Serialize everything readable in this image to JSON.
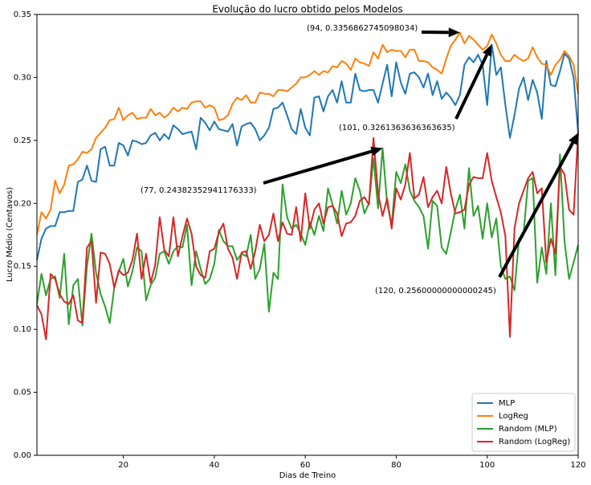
{
  "chart_data": {
    "type": "line",
    "title": "Evolução do lucro obtido pelos Modelos",
    "xlabel": "Dias de Treino",
    "ylabel": "Lucro Médio (Centavos)",
    "xlim": [
      1,
      120
    ],
    "ylim": [
      0,
      0.35
    ],
    "xticks": [
      20,
      40,
      60,
      80,
      100,
      120
    ],
    "yticks": [
      {
        "value": 0,
        "label": "0.00"
      },
      {
        "value": 0.05,
        "label": "0.05"
      },
      {
        "value": 0.1,
        "label": "0.10"
      },
      {
        "value": 0.15,
        "label": "0.15"
      },
      {
        "value": 0.2,
        "label": "0.20"
      },
      {
        "value": 0.25,
        "label": "0.25"
      },
      {
        "value": 0.3,
        "label": "0.30"
      },
      {
        "value": 0.35,
        "label": "0.35"
      }
    ],
    "legend": "lower right",
    "x": [
      1,
      2,
      3,
      4,
      5,
      6,
      7,
      8,
      9,
      10,
      11,
      12,
      13,
      14,
      15,
      16,
      17,
      18,
      19,
      20,
      21,
      22,
      23,
      24,
      25,
      26,
      27,
      28,
      29,
      30,
      31,
      32,
      33,
      34,
      35,
      36,
      37,
      38,
      39,
      40,
      41,
      42,
      43,
      44,
      45,
      46,
      47,
      48,
      49,
      50,
      51,
      52,
      53,
      54,
      55,
      56,
      57,
      58,
      59,
      60,
      61,
      62,
      63,
      64,
      65,
      66,
      67,
      68,
      69,
      70,
      71,
      72,
      73,
      74,
      75,
      76,
      77,
      78,
      79,
      80,
      81,
      82,
      83,
      84,
      85,
      86,
      87,
      88,
      89,
      90,
      91,
      92,
      93,
      94,
      95,
      96,
      97,
      98,
      99,
      100,
      101,
      102,
      103,
      104,
      105,
      106,
      107,
      108,
      109,
      110,
      111,
      112,
      113,
      114,
      115,
      116,
      117,
      118,
      119,
      120
    ],
    "series": [
      {
        "name": "MLP",
        "color": "#1f77b4",
        "values": [
          0.155,
          0.172,
          0.18,
          0.182,
          0.182,
          0.193,
          0.193,
          0.194,
          0.194,
          0.217,
          0.219,
          0.23,
          0.218,
          0.217,
          0.243,
          0.245,
          0.23,
          0.23,
          0.248,
          0.246,
          0.238,
          0.25,
          0.249,
          0.247,
          0.248,
          0.254,
          0.256,
          0.25,
          0.255,
          0.251,
          0.262,
          0.259,
          0.255,
          0.256,
          0.257,
          0.243,
          0.268,
          0.264,
          0.258,
          0.265,
          0.259,
          0.258,
          0.257,
          0.263,
          0.246,
          0.261,
          0.263,
          0.264,
          0.259,
          0.25,
          0.254,
          0.26,
          0.275,
          0.276,
          0.28,
          0.27,
          0.259,
          0.255,
          0.275,
          0.26,
          0.254,
          0.284,
          0.285,
          0.273,
          0.285,
          0.29,
          0.28,
          0.297,
          0.28,
          0.28,
          0.303,
          0.29,
          0.289,
          0.29,
          0.29,
          0.28,
          0.295,
          0.31,
          0.285,
          0.312,
          0.296,
          0.287,
          0.303,
          0.304,
          0.3,
          0.292,
          0.303,
          0.286,
          0.297,
          0.283,
          0.288,
          0.284,
          0.278,
          0.286,
          0.31,
          0.316,
          0.312,
          0.318,
          0.31,
          0.278,
          0.3261363636363635,
          0.302,
          0.308,
          0.278,
          0.252,
          0.27,
          0.291,
          0.3,
          0.282,
          0.298,
          0.288,
          0.267,
          0.313,
          0.294,
          0.293,
          0.305,
          0.319,
          0.315,
          0.3,
          0.256
        ]
      },
      {
        "name": "LogReg",
        "color": "#ff7f0e",
        "values": [
          0.175,
          0.193,
          0.188,
          0.195,
          0.218,
          0.208,
          0.215,
          0.23,
          0.231,
          0.235,
          0.241,
          0.24,
          0.243,
          0.252,
          0.256,
          0.26,
          0.266,
          0.267,
          0.276,
          0.266,
          0.27,
          0.272,
          0.267,
          0.268,
          0.268,
          0.275,
          0.27,
          0.272,
          0.268,
          0.271,
          0.276,
          0.273,
          0.276,
          0.275,
          0.28,
          0.281,
          0.281,
          0.276,
          0.278,
          0.276,
          0.266,
          0.267,
          0.27,
          0.279,
          0.284,
          0.282,
          0.286,
          0.28,
          0.28,
          0.288,
          0.287,
          0.287,
          0.285,
          0.29,
          0.29,
          0.289,
          0.292,
          0.295,
          0.3,
          0.3,
          0.302,
          0.305,
          0.302,
          0.305,
          0.304,
          0.309,
          0.308,
          0.313,
          0.311,
          0.306,
          0.315,
          0.312,
          0.311,
          0.309,
          0.32,
          0.315,
          0.326,
          0.32,
          0.322,
          0.321,
          0.321,
          0.316,
          0.322,
          0.322,
          0.313,
          0.313,
          0.312,
          0.308,
          0.306,
          0.303,
          0.315,
          0.325,
          0.33,
          0.3356862745098034,
          0.327,
          0.333,
          0.33,
          0.326,
          0.322,
          0.325,
          0.334,
          0.327,
          0.318,
          0.313,
          0.313,
          0.318,
          0.315,
          0.313,
          0.315,
          0.324,
          0.316,
          0.311,
          0.31,
          0.302,
          0.31,
          0.314,
          0.321,
          0.317,
          0.31,
          0.287
        ]
      },
      {
        "name": "Random (MLP)",
        "color": "#2ca02c",
        "values": [
          0.12,
          0.144,
          0.127,
          0.14,
          0.142,
          0.125,
          0.16,
          0.104,
          0.135,
          0.14,
          0.103,
          0.15,
          0.176,
          0.145,
          0.128,
          0.118,
          0.105,
          0.133,
          0.146,
          0.156,
          0.134,
          0.146,
          0.165,
          0.162,
          0.123,
          0.135,
          0.141,
          0.16,
          0.162,
          0.152,
          0.162,
          0.166,
          0.165,
          0.183,
          0.135,
          0.162,
          0.148,
          0.136,
          0.14,
          0.152,
          0.179,
          0.17,
          0.166,
          0.166,
          0.155,
          0.16,
          0.158,
          0.175,
          0.14,
          0.148,
          0.168,
          0.114,
          0.145,
          0.14,
          0.215,
          0.189,
          0.18,
          0.183,
          0.176,
          0.167,
          0.185,
          0.175,
          0.19,
          0.178,
          0.212,
          0.199,
          0.184,
          0.21,
          0.191,
          0.2,
          0.22,
          0.21,
          0.192,
          0.2,
          0.236,
          0.196,
          0.24382352941176333,
          0.2,
          0.183,
          0.225,
          0.216,
          0.231,
          0.21,
          0.202,
          0.197,
          0.19,
          0.164,
          0.202,
          0.198,
          0.165,
          0.16,
          0.177,
          0.195,
          0.207,
          0.18,
          0.228,
          0.19,
          0.198,
          0.172,
          0.2,
          0.173,
          0.188,
          0.15,
          0.14,
          0.142,
          0.131,
          0.172,
          0.176,
          0.218,
          0.22,
          0.137,
          0.165,
          0.144,
          0.2,
          0.143,
          0.239,
          0.17,
          0.14,
          0.153,
          0.167
        ]
      },
      {
        "name": "Random (LogReg)",
        "color": "#d62728",
        "values": [
          0.119,
          0.112,
          0.092,
          0.144,
          0.14,
          0.128,
          0.122,
          0.12,
          0.127,
          0.107,
          0.105,
          0.165,
          0.17,
          0.121,
          0.161,
          0.16,
          0.152,
          0.133,
          0.147,
          0.143,
          0.145,
          0.155,
          0.176,
          0.14,
          0.16,
          0.137,
          0.151,
          0.189,
          0.163,
          0.158,
          0.189,
          0.158,
          0.174,
          0.188,
          0.176,
          0.15,
          0.143,
          0.141,
          0.162,
          0.164,
          0.177,
          0.184,
          0.164,
          0.157,
          0.14,
          0.161,
          0.162,
          0.148,
          0.162,
          0.183,
          0.17,
          0.175,
          0.192,
          0.17,
          0.185,
          0.176,
          0.175,
          0.197,
          0.17,
          0.208,
          0.18,
          0.195,
          0.2,
          0.184,
          0.197,
          0.198,
          0.192,
          0.174,
          0.184,
          0.185,
          0.19,
          0.202,
          0.205,
          0.199,
          0.252,
          0.208,
          0.19,
          0.204,
          0.18,
          0.212,
          0.203,
          0.215,
          0.24,
          0.204,
          0.207,
          0.221,
          0.197,
          0.205,
          0.21,
          0.2,
          0.229,
          0.208,
          0.192,
          0.193,
          0.195,
          0.215,
          0.221,
          0.22,
          0.22,
          0.24,
          0.218,
          0.205,
          0.193,
          0.174,
          0.094,
          0.18,
          0.2,
          0.21,
          0.22,
          0.225,
          0.208,
          0.212,
          0.153,
          0.172,
          0.16,
          0.229,
          0.223,
          0.195,
          0.191,
          0.25600000000000245
        ]
      }
    ],
    "annotations": [
      {
        "text": "(94, 0.3356862745098034)",
        "x": 94,
        "y": 0.3356862745098034
      },
      {
        "text": "(101, 0.3261363636363635)",
        "x": 101,
        "y": 0.3261363636363635
      },
      {
        "text": "(77, 0.24382352941176333)",
        "x": 77,
        "y": 0.24382352941176333
      },
      {
        "text": "(120, 0.25600000000000245)",
        "x": 120,
        "y": 0.25600000000000245
      }
    ]
  }
}
